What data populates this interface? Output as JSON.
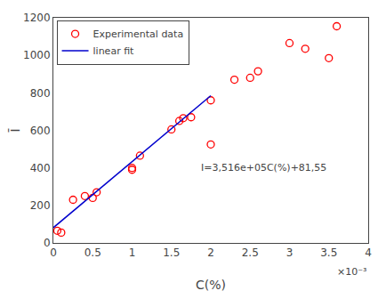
{
  "chart_data": {
    "type": "scatter",
    "xlabel": "C(%)",
    "ylabel": "Ī",
    "series": [
      {
        "name": "Experimental data",
        "type": "scatter",
        "marker": "circle-open",
        "color": "#FF0000",
        "x": [
          5e-05,
          0.0001,
          0.00025,
          0.0004,
          0.0005,
          0.00055,
          0.001,
          0.001,
          0.0011,
          0.0015,
          0.0016,
          0.00165,
          0.00175,
          0.002,
          0.002,
          0.0023,
          0.0025,
          0.0026,
          0.003,
          0.0032,
          0.0035,
          0.0036
        ],
        "values": [
          65,
          55,
          230,
          250,
          240,
          270,
          400,
          390,
          465,
          605,
          650,
          665,
          670,
          760,
          525,
          870,
          880,
          915,
          1065,
          1035,
          985,
          1155
        ]
      },
      {
        "name": "linear fit",
        "type": "line",
        "line_style": "solid",
        "color": "#0000CD",
        "x": [
          0.0,
          0.002
        ],
        "values": [
          81.55,
          784.75
        ]
      }
    ],
    "annotations": [
      {
        "text": "I=3,516e+05C(%)+81,55",
        "x": 0.00185,
        "y": 360
      },
      {
        "text": "×10⁻³"
      }
    ],
    "xlim": [
      0,
      0.004
    ],
    "ylim": [
      0,
      1200
    ],
    "xticks": [
      0,
      {
        "value": 0.0005,
        "label": "0.5"
      },
      {
        "value": 0.001,
        "label": "1"
      },
      {
        "value": 0.0015,
        "label": "1.5"
      },
      {
        "value": 0.002,
        "label": "2"
      },
      {
        "value": 0.0025,
        "label": "2.5"
      },
      {
        "value": 0.003,
        "label": "3"
      },
      {
        "value": 0.0035,
        "label": "3.5"
      },
      {
        "value": 0.004,
        "label": "4"
      }
    ],
    "yticks": [
      0,
      200,
      400,
      600,
      800,
      1000,
      1200
    ],
    "grid": false,
    "legend": "upper left"
  }
}
